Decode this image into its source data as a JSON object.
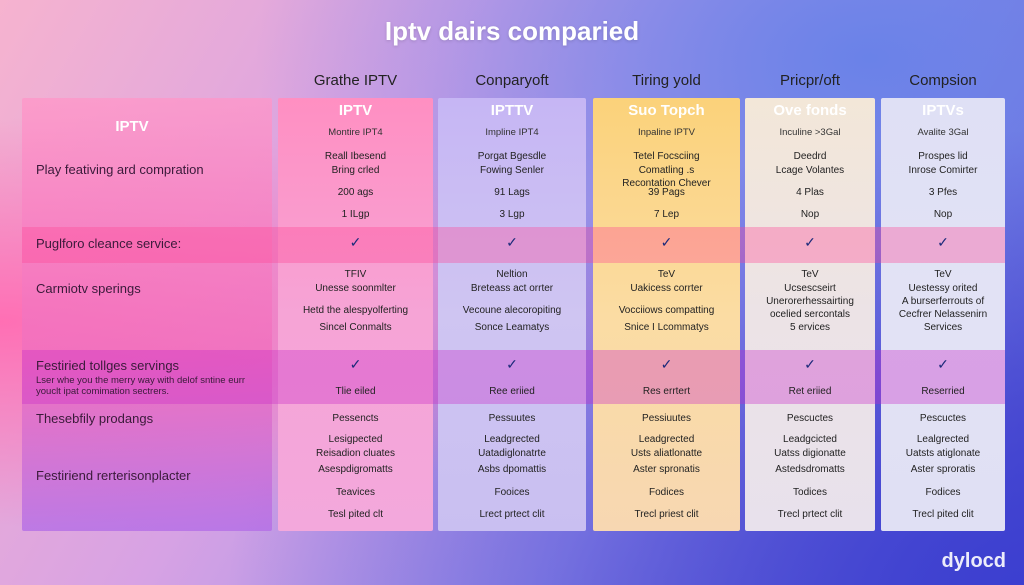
{
  "title": "Iptv dairs comparied",
  "column_headings": [
    "Grathe IPTV",
    "Conparyoft",
    "Tiring yold",
    "Pricpr/oft",
    "Compsion"
  ],
  "label_header": "IPTV",
  "services": [
    {
      "name": "IPTV",
      "sub": "Montire IPT4"
    },
    {
      "name": "IPTTV",
      "sub": "Impline IPT4"
    },
    {
      "name": "Suo Topch",
      "sub": "Inpaline IPTV"
    },
    {
      "name": "Ove fonds",
      "sub": "Inculine >3Gal"
    },
    {
      "name": "IPTVs",
      "sub": "Avalite 3Gal"
    }
  ],
  "rows": {
    "features_label": "Play feativing ard compration",
    "features": [
      [
        "Reall Ibesend",
        "Bring crled",
        "",
        "200 ags",
        "1 ILgp"
      ],
      [
        "Porgat Bgesdle",
        "Fowing Senler",
        "",
        "91 Lags",
        "3 Lgp"
      ],
      [
        "Tetel Focsciing",
        "Comatling .s",
        "Recontation Chever",
        "39 Pags",
        "7 Lep"
      ],
      [
        "Deedrd",
        "Lcage Volantes",
        "",
        "4 Plas",
        "Nop"
      ],
      [
        "Prospes lid",
        "Inrose Comirter",
        "",
        "3 Pfes",
        "Nop"
      ]
    ],
    "service_label": "Puglforo cleance service:",
    "check": "✓",
    "spacing_label": "Carmiotv sperings",
    "spacing": [
      [
        "TFIV",
        "Unesse soonmlter",
        "Hetd the alespyolferting",
        "Sincel Conmalts"
      ],
      [
        "Neltion",
        "Breteass act orrter",
        "Vecoune alecoropiting",
        "Sonce Leamatys"
      ],
      [
        "TeV",
        "Uakicess corrter",
        "Vocciiows compatting",
        "Snice I Lcommatys"
      ],
      [
        "TeV",
        "Ucsescseirt",
        "Unerorerhessairting",
        "ocelied sercontals",
        "5 ervices"
      ],
      [
        "TeV",
        "Uestessy orited",
        "A burserferrouts of",
        "Cecfrer Nelassenirn",
        "Services"
      ]
    ],
    "tools_label": "Festiried tollges servings",
    "tools_note": "Lser whe you the merry way with delof sntine eurr youclt ipat comimation sectrers.",
    "tools": [
      "Tlie eiled",
      "Ree eriied",
      "Res errtert",
      "Ret eriied",
      "Reserried"
    ],
    "products_label": "Thesebfily prodangs",
    "replace_label": "Festiriend rerterisonplacter",
    "products": [
      [
        "Pessencts",
        "Lesigpected",
        "Reisadion cluates",
        "Asespdigromatts",
        "Teavices",
        "Tesl pited clt"
      ],
      [
        "Pessuutes",
        "Leadgrected",
        "Uatadiglonatrte",
        "Asbs dpomattis",
        "Fooices",
        "Lrect prtect clit"
      ],
      [
        "Pessiuutes",
        "Leadgrected",
        "Usts aliatlonatte",
        "Aster spronatis",
        "Fodices",
        "Trecl priest clit"
      ],
      [
        "Pescuctes",
        "Leadgcicted",
        "Uatss digionatte",
        "Astedsdromatts",
        "Todices",
        "Trecl prtect clit"
      ],
      [
        "Pescuctes",
        "Lealgrected",
        "Uatsts atiglonate",
        "Aster sproratis",
        "Fodices",
        "Trecl pited clit"
      ]
    ]
  },
  "logo": "dylocd",
  "colors": {
    "col_a": "#ff8fc2",
    "col_b": "#c6b6f4",
    "col_c": "#fbd27a",
    "col_d": "#f3e7d8",
    "col_e": "#dfe0f5",
    "check": "#1c2a7a"
  }
}
